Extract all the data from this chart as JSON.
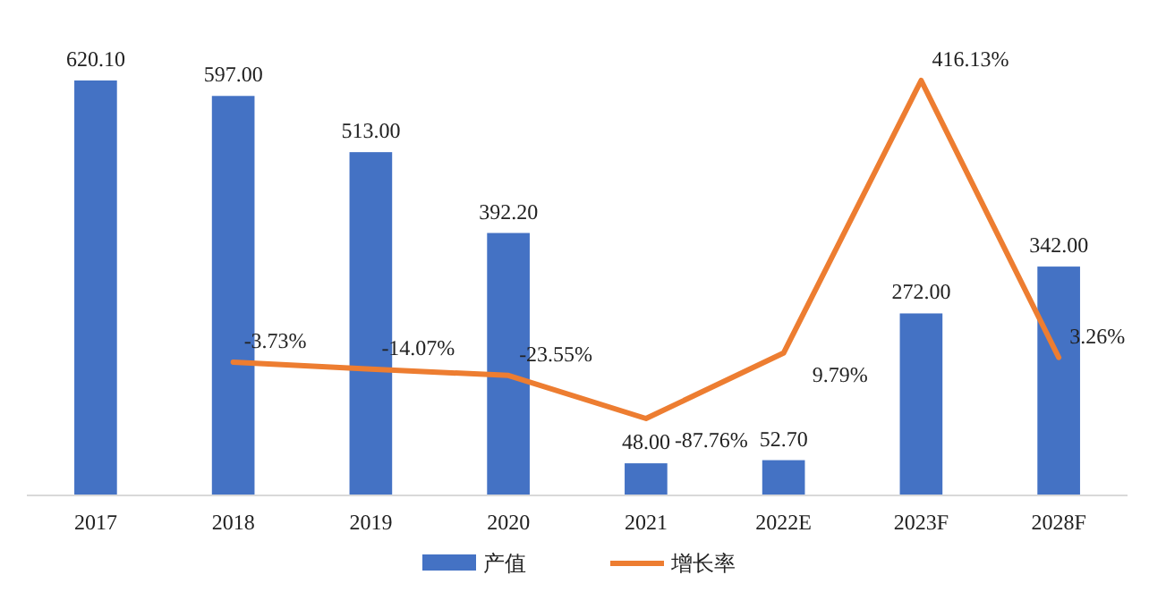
{
  "chart_data": {
    "type": "bar",
    "categories": [
      "2017",
      "2018",
      "2019",
      "2020",
      "2021",
      "2022E",
      "2023F",
      "2028F"
    ],
    "series": [
      {
        "name": "产值",
        "color": "#4472c4",
        "values": [
          620.1,
          597.0,
          513.0,
          392.2,
          48.0,
          52.7,
          272.0,
          342.0
        ],
        "value_labels": [
          "620.10",
          "597.00",
          "513.00",
          "392.20",
          "48.00",
          "52.70",
          "272.00",
          "342.00"
        ]
      },
      {
        "name": "增长率",
        "type": "line",
        "axis": "y2",
        "color": "#ed7d31",
        "values": [
          null,
          -3.73,
          -14.07,
          -23.55,
          -87.76,
          9.79,
          416.13,
          3.26
        ],
        "value_labels": [
          null,
          "-3.73%",
          "-14.07%",
          "-23.55%",
          "-87.76%",
          "9.79%",
          "416.13%",
          "3.26%"
        ]
      }
    ],
    "tick_labels": "x",
    "legend": "bottom",
    "marker": "none",
    "line_style": "solid"
  }
}
